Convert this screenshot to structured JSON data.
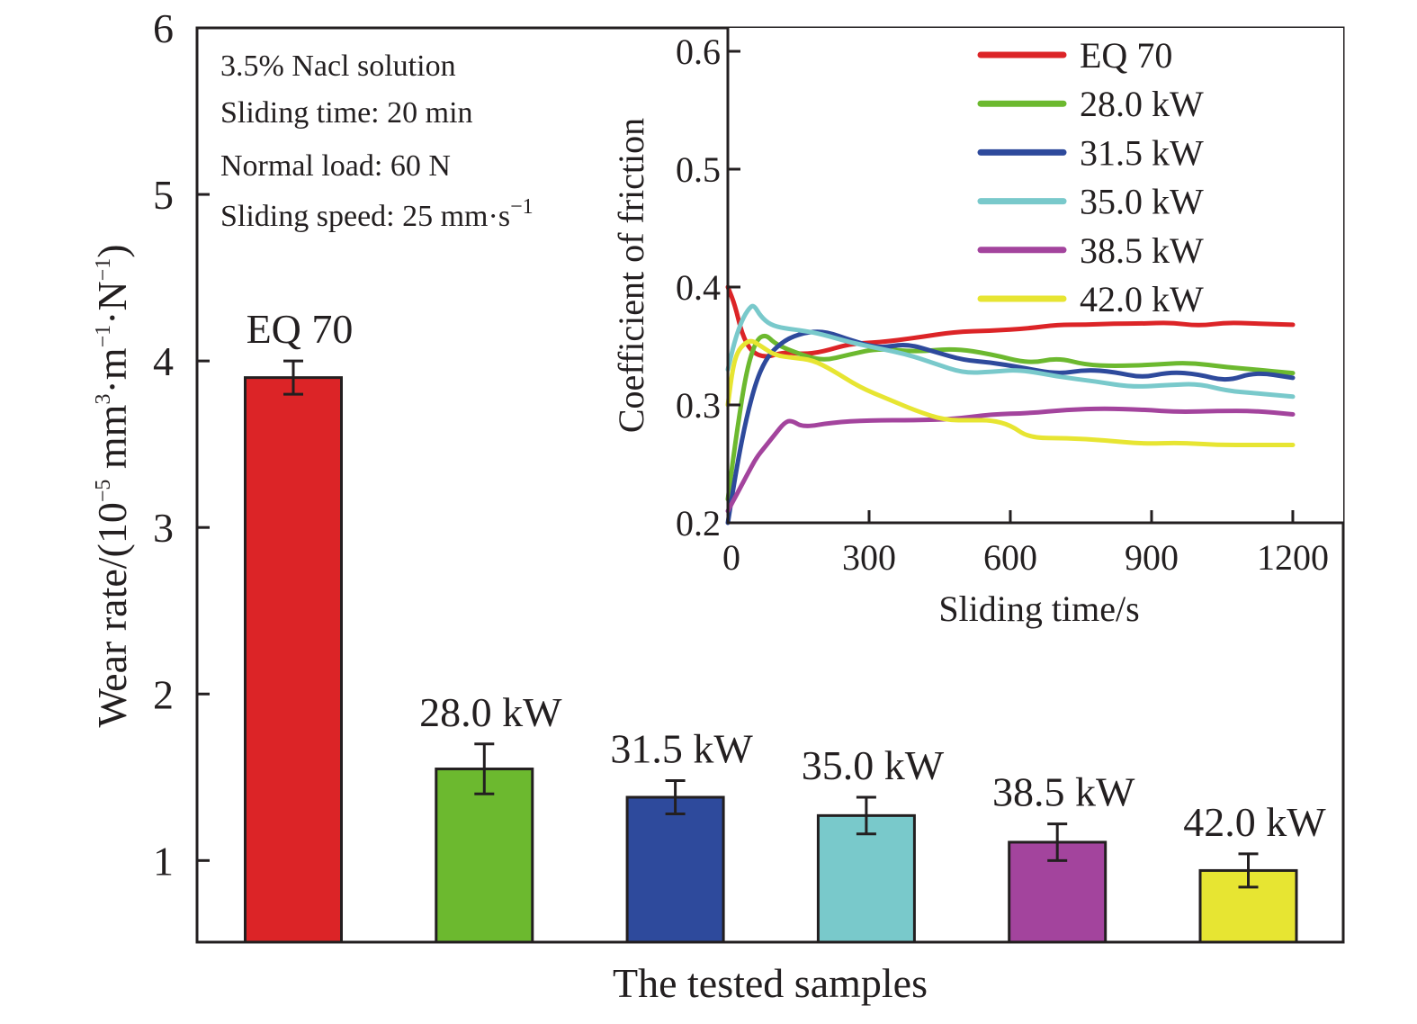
{
  "chart_data": [
    {
      "type": "bar",
      "title": "",
      "xlabel": "The tested samples",
      "ylabel_parts": {
        "prefix": "Wear rate/(10",
        "exp1": "−5",
        "mid1": " mm",
        "exp2": "3",
        "mid2": "·m",
        "exp3": "−1",
        "mid3": "·N",
        "exp4": "−1",
        "suffix": ")"
      },
      "ylabel": "Wear rate/(10^-5 mm^3·m^-1·N^-1)",
      "ylim": [
        0.51,
        6
      ],
      "yticks": [
        1,
        2,
        3,
        4,
        5,
        6
      ],
      "grid": false,
      "categories": [
        "EQ 70",
        "28.0 kW",
        "31.5 kW",
        "35.0 kW",
        "38.5 kW",
        "42.0 kW"
      ],
      "values": [
        3.9,
        1.55,
        1.38,
        1.27,
        1.11,
        0.94
      ],
      "errors": [
        0.1,
        0.15,
        0.1,
        0.11,
        0.11,
        0.1
      ],
      "colors": [
        "#dc2427",
        "#6cb92f",
        "#2e4a9c",
        "#79c9cb",
        "#a3449d",
        "#e7e532"
      ],
      "annotations": [
        "3.5% Nacl solution",
        "Sliding time: 20 min",
        "Normal load: 60 N",
        "Sliding speed: 25 mm·s"
      ],
      "annotation_speed_exp": "−1"
    },
    {
      "type": "line",
      "title": "",
      "placement": "inset top-right",
      "xlabel": "Sliding time/s",
      "ylabel": "Coefficient of friction",
      "xlim": [
        0,
        1300
      ],
      "ylim": [
        0.2,
        0.62
      ],
      "xticks": [
        0,
        300,
        600,
        900,
        1200
      ],
      "yticks": [
        0.2,
        0.3,
        0.4,
        0.5,
        0.6
      ],
      "ytick_labels": [
        "0.2",
        "0.3",
        "0.4",
        "0.5",
        "0.6"
      ],
      "grid": false,
      "legend": "top-right",
      "series": [
        {
          "name": "EQ 70",
          "color": "#dc2427",
          "x": [
            0,
            15,
            30,
            50,
            80,
            120,
            160,
            200,
            260,
            320,
            400,
            480,
            560,
            640,
            700,
            760,
            820,
            880,
            940,
            1000,
            1060,
            1120,
            1200
          ],
          "y": [
            0.4,
            0.385,
            0.36,
            0.345,
            0.34,
            0.345,
            0.343,
            0.345,
            0.352,
            0.353,
            0.357,
            0.362,
            0.363,
            0.365,
            0.368,
            0.368,
            0.369,
            0.369,
            0.37,
            0.367,
            0.37,
            0.369,
            0.368
          ]
        },
        {
          "name": "28.0 kW",
          "color": "#6cb92f",
          "x": [
            0,
            20,
            40,
            60,
            80,
            100,
            140,
            200,
            260,
            320,
            400,
            480,
            560,
            640,
            700,
            760,
            820,
            900,
            980,
            1060,
            1120,
            1200
          ],
          "y": [
            0.22,
            0.28,
            0.33,
            0.355,
            0.36,
            0.352,
            0.345,
            0.337,
            0.343,
            0.348,
            0.345,
            0.348,
            0.343,
            0.335,
            0.34,
            0.334,
            0.333,
            0.334,
            0.336,
            0.332,
            0.33,
            0.327
          ]
        },
        {
          "name": "31.5 kW",
          "color": "#2e4a9c",
          "x": [
            0,
            20,
            40,
            60,
            80,
            100,
            130,
            170,
            210,
            260,
            320,
            380,
            440,
            500,
            560,
            620,
            700,
            760,
            820,
            880,
            940,
            1000,
            1060,
            1120,
            1200
          ],
          "y": [
            0.2,
            0.25,
            0.29,
            0.32,
            0.338,
            0.348,
            0.357,
            0.362,
            0.362,
            0.355,
            0.348,
            0.352,
            0.345,
            0.338,
            0.336,
            0.332,
            0.326,
            0.33,
            0.328,
            0.323,
            0.328,
            0.326,
            0.32,
            0.328,
            0.323
          ]
        },
        {
          "name": "35.0 kW",
          "color": "#79c9cb",
          "x": [
            0,
            15,
            30,
            45,
            55,
            70,
            90,
            120,
            160,
            200,
            260,
            320,
            380,
            440,
            500,
            560,
            620,
            700,
            780,
            860,
            940,
            1000,
            1060,
            1120,
            1200
          ],
          "y": [
            0.33,
            0.355,
            0.372,
            0.382,
            0.385,
            0.375,
            0.368,
            0.365,
            0.363,
            0.36,
            0.353,
            0.348,
            0.343,
            0.335,
            0.327,
            0.328,
            0.33,
            0.324,
            0.32,
            0.315,
            0.317,
            0.318,
            0.312,
            0.31,
            0.307
          ]
        },
        {
          "name": "38.5 kW",
          "color": "#a3449d",
          "x": [
            0,
            20,
            40,
            60,
            80,
            100,
            120,
            135,
            160,
            220,
            300,
            400,
            480,
            560,
            640,
            720,
            800,
            880,
            960,
            1040,
            1120,
            1200
          ],
          "y": [
            0.21,
            0.225,
            0.24,
            0.255,
            0.265,
            0.275,
            0.285,
            0.287,
            0.281,
            0.285,
            0.287,
            0.287,
            0.288,
            0.292,
            0.293,
            0.296,
            0.297,
            0.296,
            0.294,
            0.295,
            0.295,
            0.292
          ]
        },
        {
          "name": "42.0 kW",
          "color": "#e7e532",
          "x": [
            0,
            10,
            20,
            35,
            50,
            70,
            100,
            140,
            180,
            220,
            280,
            340,
            400,
            460,
            520,
            560,
            600,
            640,
            720,
            800,
            880,
            960,
            1040,
            1120,
            1200
          ],
          "y": [
            0.3,
            0.33,
            0.345,
            0.352,
            0.355,
            0.35,
            0.342,
            0.34,
            0.338,
            0.33,
            0.315,
            0.305,
            0.295,
            0.287,
            0.287,
            0.287,
            0.283,
            0.272,
            0.272,
            0.27,
            0.267,
            0.268,
            0.266,
            0.266,
            0.266
          ]
        }
      ]
    }
  ]
}
